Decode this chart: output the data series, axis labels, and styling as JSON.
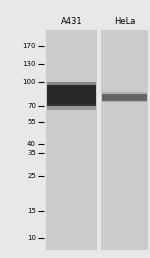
{
  "title_labels": [
    "A431",
    "HeLa"
  ],
  "mw_markers": [
    170,
    130,
    100,
    70,
    55,
    40,
    35,
    25,
    15,
    10
  ],
  "bg_color": "#cbcbcb",
  "gap_color": "#e8e8e8",
  "band_color_a431": "#111111",
  "band_color_hela": "#4a4a4a",
  "fig_bg": "#e8e8e8",
  "title_fontsize": 6.0,
  "marker_fontsize": 5.0
}
